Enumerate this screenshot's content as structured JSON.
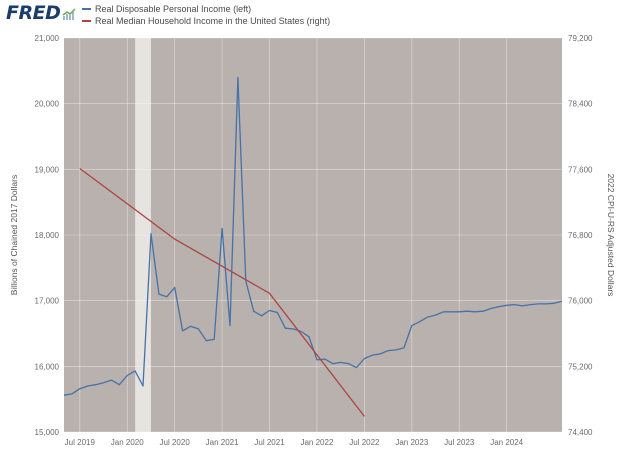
{
  "header": {
    "logo_text": "FRED",
    "logo_icon": "chart-trend-icon"
  },
  "colors": {
    "plot_bg": "#b9b1ad",
    "recession": "#e6e3e0",
    "grid": "#ffffff",
    "series_left": "#4572a7",
    "series_right": "#aa4643"
  },
  "chart_data": {
    "type": "line",
    "x_ticks": [
      "Jul 2019",
      "Jan 2020",
      "Jul 2020",
      "Jan 2021",
      "Jul 2021",
      "Jan 2022",
      "Jul 2022",
      "Jan 2023",
      "Jul 2023",
      "Jan 2024"
    ],
    "x_range": [
      "2019-05",
      "2024-08"
    ],
    "y_left": {
      "label": "Billions of Chained 2017 Dollars",
      "range": [
        15000,
        21000
      ],
      "ticks": [
        "15,000",
        "16,000",
        "17,000",
        "18,000",
        "19,000",
        "20,000",
        "21,000"
      ],
      "tick_values": [
        15000,
        16000,
        17000,
        18000,
        19000,
        20000,
        21000
      ]
    },
    "y_right": {
      "label": "2022 CPI-U-RS Adjusted Dollars",
      "range": [
        74400,
        79200
      ],
      "ticks": [
        "74,400",
        "75,200",
        "76,000",
        "76,800",
        "77,600",
        "78,400",
        "79,200"
      ],
      "tick_values": [
        74400,
        75200,
        76000,
        76800,
        77600,
        78400,
        79200
      ]
    },
    "recession": {
      "start": "2020-02",
      "end": "2020-04"
    },
    "grid": true,
    "legend_position": "top-left",
    "series": [
      {
        "name": "Real Disposable Personal Income (left)",
        "axis": "left",
        "x": [
          "2019-05",
          "2019-06",
          "2019-07",
          "2019-08",
          "2019-09",
          "2019-10",
          "2019-11",
          "2019-12",
          "2020-01",
          "2020-02",
          "2020-03",
          "2020-04",
          "2020-05",
          "2020-06",
          "2020-07",
          "2020-08",
          "2020-09",
          "2020-10",
          "2020-11",
          "2020-12",
          "2021-01",
          "2021-02",
          "2021-03",
          "2021-04",
          "2021-05",
          "2021-06",
          "2021-07",
          "2021-08",
          "2021-09",
          "2021-10",
          "2021-11",
          "2021-12",
          "2022-01",
          "2022-02",
          "2022-03",
          "2022-04",
          "2022-05",
          "2022-06",
          "2022-07",
          "2022-08",
          "2022-09",
          "2022-10",
          "2022-11",
          "2022-12",
          "2023-01",
          "2023-02",
          "2023-03",
          "2023-04",
          "2023-05",
          "2023-06",
          "2023-07",
          "2023-08",
          "2023-09",
          "2023-10",
          "2023-11",
          "2023-12",
          "2024-01",
          "2024-02",
          "2024-03",
          "2024-04",
          "2024-05",
          "2024-06",
          "2024-07",
          "2024-08"
        ],
        "values": [
          15560,
          15580,
          15660,
          15700,
          15720,
          15750,
          15790,
          15720,
          15860,
          15930,
          15700,
          18020,
          17100,
          17060,
          17200,
          16540,
          16610,
          16570,
          16390,
          16410,
          18100,
          16620,
          20400,
          17300,
          16840,
          16770,
          16850,
          16820,
          16580,
          16570,
          16530,
          16450,
          16100,
          16110,
          16040,
          16060,
          16040,
          15980,
          16120,
          16170,
          16190,
          16240,
          16250,
          16280,
          16620,
          16680,
          16750,
          16780,
          16830,
          16830,
          16830,
          16840,
          16830,
          16840,
          16880,
          16910,
          16930,
          16940,
          16920,
          16940,
          16950,
          16950,
          16960,
          16990
        ]
      },
      {
        "name": "Real Median Household Income in the United States (right)",
        "axis": "right",
        "x": [
          "2019-07",
          "2020-07",
          "2021-07",
          "2022-07"
        ],
        "values": [
          77610,
          76750,
          76090,
          74590
        ]
      }
    ]
  }
}
